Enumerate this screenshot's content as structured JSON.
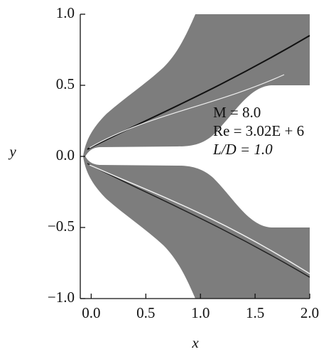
{
  "chart_data": {
    "type": "image",
    "xlabel": "x",
    "ylabel": "y",
    "xlim": [
      -0.1,
      2.0
    ],
    "ylim": [
      -1.0,
      1.0
    ],
    "xticks": [
      {
        "value": 0,
        "label": "0.0"
      },
      {
        "value": 0.5,
        "label": "0.5"
      },
      {
        "value": 1,
        "label": "1.0"
      },
      {
        "value": 1.5,
        "label": "1.5"
      },
      {
        "value": 2,
        "label": "2.0"
      }
    ],
    "yticks": [
      {
        "value": -1,
        "label": "−1.0"
      },
      {
        "value": -0.5,
        "label": "−0.5"
      },
      {
        "value": 0,
        "label": "0.0"
      },
      {
        "value": 0.5,
        "label": "0.5"
      },
      {
        "value": 1,
        "label": "1.0"
      }
    ],
    "annotations": [
      "M = 8.0",
      "Re = 3.02E + 6",
      "L/D = 1.0"
    ]
  }
}
